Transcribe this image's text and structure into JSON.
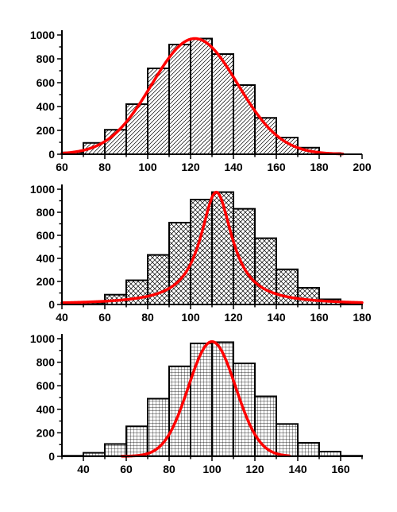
{
  "chart_data": [
    {
      "type": "bar",
      "hatch": "diagonal",
      "fit": "normal-curve",
      "xlim": [
        60,
        200
      ],
      "ylim": [
        0,
        1000
      ],
      "xticks": [
        60,
        80,
        100,
        120,
        140,
        160,
        180,
        200
      ],
      "yticks": [
        0,
        200,
        400,
        600,
        800,
        1000
      ],
      "bins": [
        {
          "x0": 60,
          "x1": 70,
          "value": 15
        },
        {
          "x0": 70,
          "x1": 80,
          "value": 95
        },
        {
          "x0": 80,
          "x1": 90,
          "value": 205
        },
        {
          "x0": 90,
          "x1": 100,
          "value": 420
        },
        {
          "x0": 100,
          "x1": 110,
          "value": 720
        },
        {
          "x0": 110,
          "x1": 120,
          "value": 920
        },
        {
          "x0": 120,
          "x1": 130,
          "value": 970
        },
        {
          "x0": 130,
          "x1": 140,
          "value": 840
        },
        {
          "x0": 140,
          "x1": 150,
          "value": 580
        },
        {
          "x0": 150,
          "x1": 160,
          "value": 305
        },
        {
          "x0": 160,
          "x1": 170,
          "value": 140
        },
        {
          "x0": 170,
          "x1": 180,
          "value": 55
        },
        {
          "x0": 180,
          "x1": 190,
          "value": 10
        }
      ],
      "curve": {
        "kind": "gaussian",
        "peak": 970,
        "center": 122,
        "sigma": 20,
        "range": [
          60,
          191
        ]
      },
      "curve_color": "#ff0000"
    },
    {
      "type": "bar",
      "hatch": "crosshatch",
      "fit": "lorentzian-curve",
      "xlim": [
        40,
        180
      ],
      "ylim": [
        0,
        1000
      ],
      "xticks": [
        40,
        60,
        80,
        100,
        120,
        140,
        160,
        180
      ],
      "yticks": [
        0,
        200,
        400,
        600,
        800,
        1000
      ],
      "bins": [
        {
          "x0": 50,
          "x1": 60,
          "value": 15
        },
        {
          "x0": 60,
          "x1": 70,
          "value": 85
        },
        {
          "x0": 70,
          "x1": 80,
          "value": 210
        },
        {
          "x0": 80,
          "x1": 90,
          "value": 430
        },
        {
          "x0": 90,
          "x1": 100,
          "value": 710
        },
        {
          "x0": 100,
          "x1": 110,
          "value": 910
        },
        {
          "x0": 110,
          "x1": 120,
          "value": 975
        },
        {
          "x0": 120,
          "x1": 130,
          "value": 830
        },
        {
          "x0": 130,
          "x1": 140,
          "value": 575
        },
        {
          "x0": 140,
          "x1": 150,
          "value": 305
        },
        {
          "x0": 150,
          "x1": 160,
          "value": 145
        },
        {
          "x0": 160,
          "x1": 170,
          "value": 45
        },
        {
          "x0": 170,
          "x1": 180,
          "value": 10
        }
      ],
      "curve": {
        "kind": "lorentzian",
        "peak": 975,
        "center": 112,
        "gamma": 9,
        "range": [
          40,
          180
        ]
      },
      "curve_color": "#ff0000"
    },
    {
      "type": "bar",
      "hatch": "grid",
      "fit": "normal-curve",
      "xlim": [
        30,
        170
      ],
      "ylim": [
        0,
        1000
      ],
      "xticks": [
        40,
        60,
        80,
        100,
        120,
        140,
        160
      ],
      "yticks": [
        0,
        200,
        400,
        600,
        800,
        1000
      ],
      "bins": [
        {
          "x0": 30,
          "x1": 40,
          "value": 5
        },
        {
          "x0": 40,
          "x1": 50,
          "value": 30
        },
        {
          "x0": 50,
          "x1": 60,
          "value": 105
        },
        {
          "x0": 60,
          "x1": 70,
          "value": 255
        },
        {
          "x0": 70,
          "x1": 80,
          "value": 490
        },
        {
          "x0": 80,
          "x1": 90,
          "value": 765
        },
        {
          "x0": 90,
          "x1": 100,
          "value": 960
        },
        {
          "x0": 100,
          "x1": 110,
          "value": 970
        },
        {
          "x0": 110,
          "x1": 120,
          "value": 790
        },
        {
          "x0": 120,
          "x1": 130,
          "value": 510
        },
        {
          "x0": 130,
          "x1": 140,
          "value": 275
        },
        {
          "x0": 140,
          "x1": 150,
          "value": 115
        },
        {
          "x0": 150,
          "x1": 160,
          "value": 40
        },
        {
          "x0": 160,
          "x1": 170,
          "value": 5
        }
      ],
      "curve": {
        "kind": "gaussian",
        "peak": 975,
        "center": 100,
        "sigma": 11,
        "range": [
          58,
          136
        ]
      },
      "curve_color": "#ff0000"
    }
  ]
}
